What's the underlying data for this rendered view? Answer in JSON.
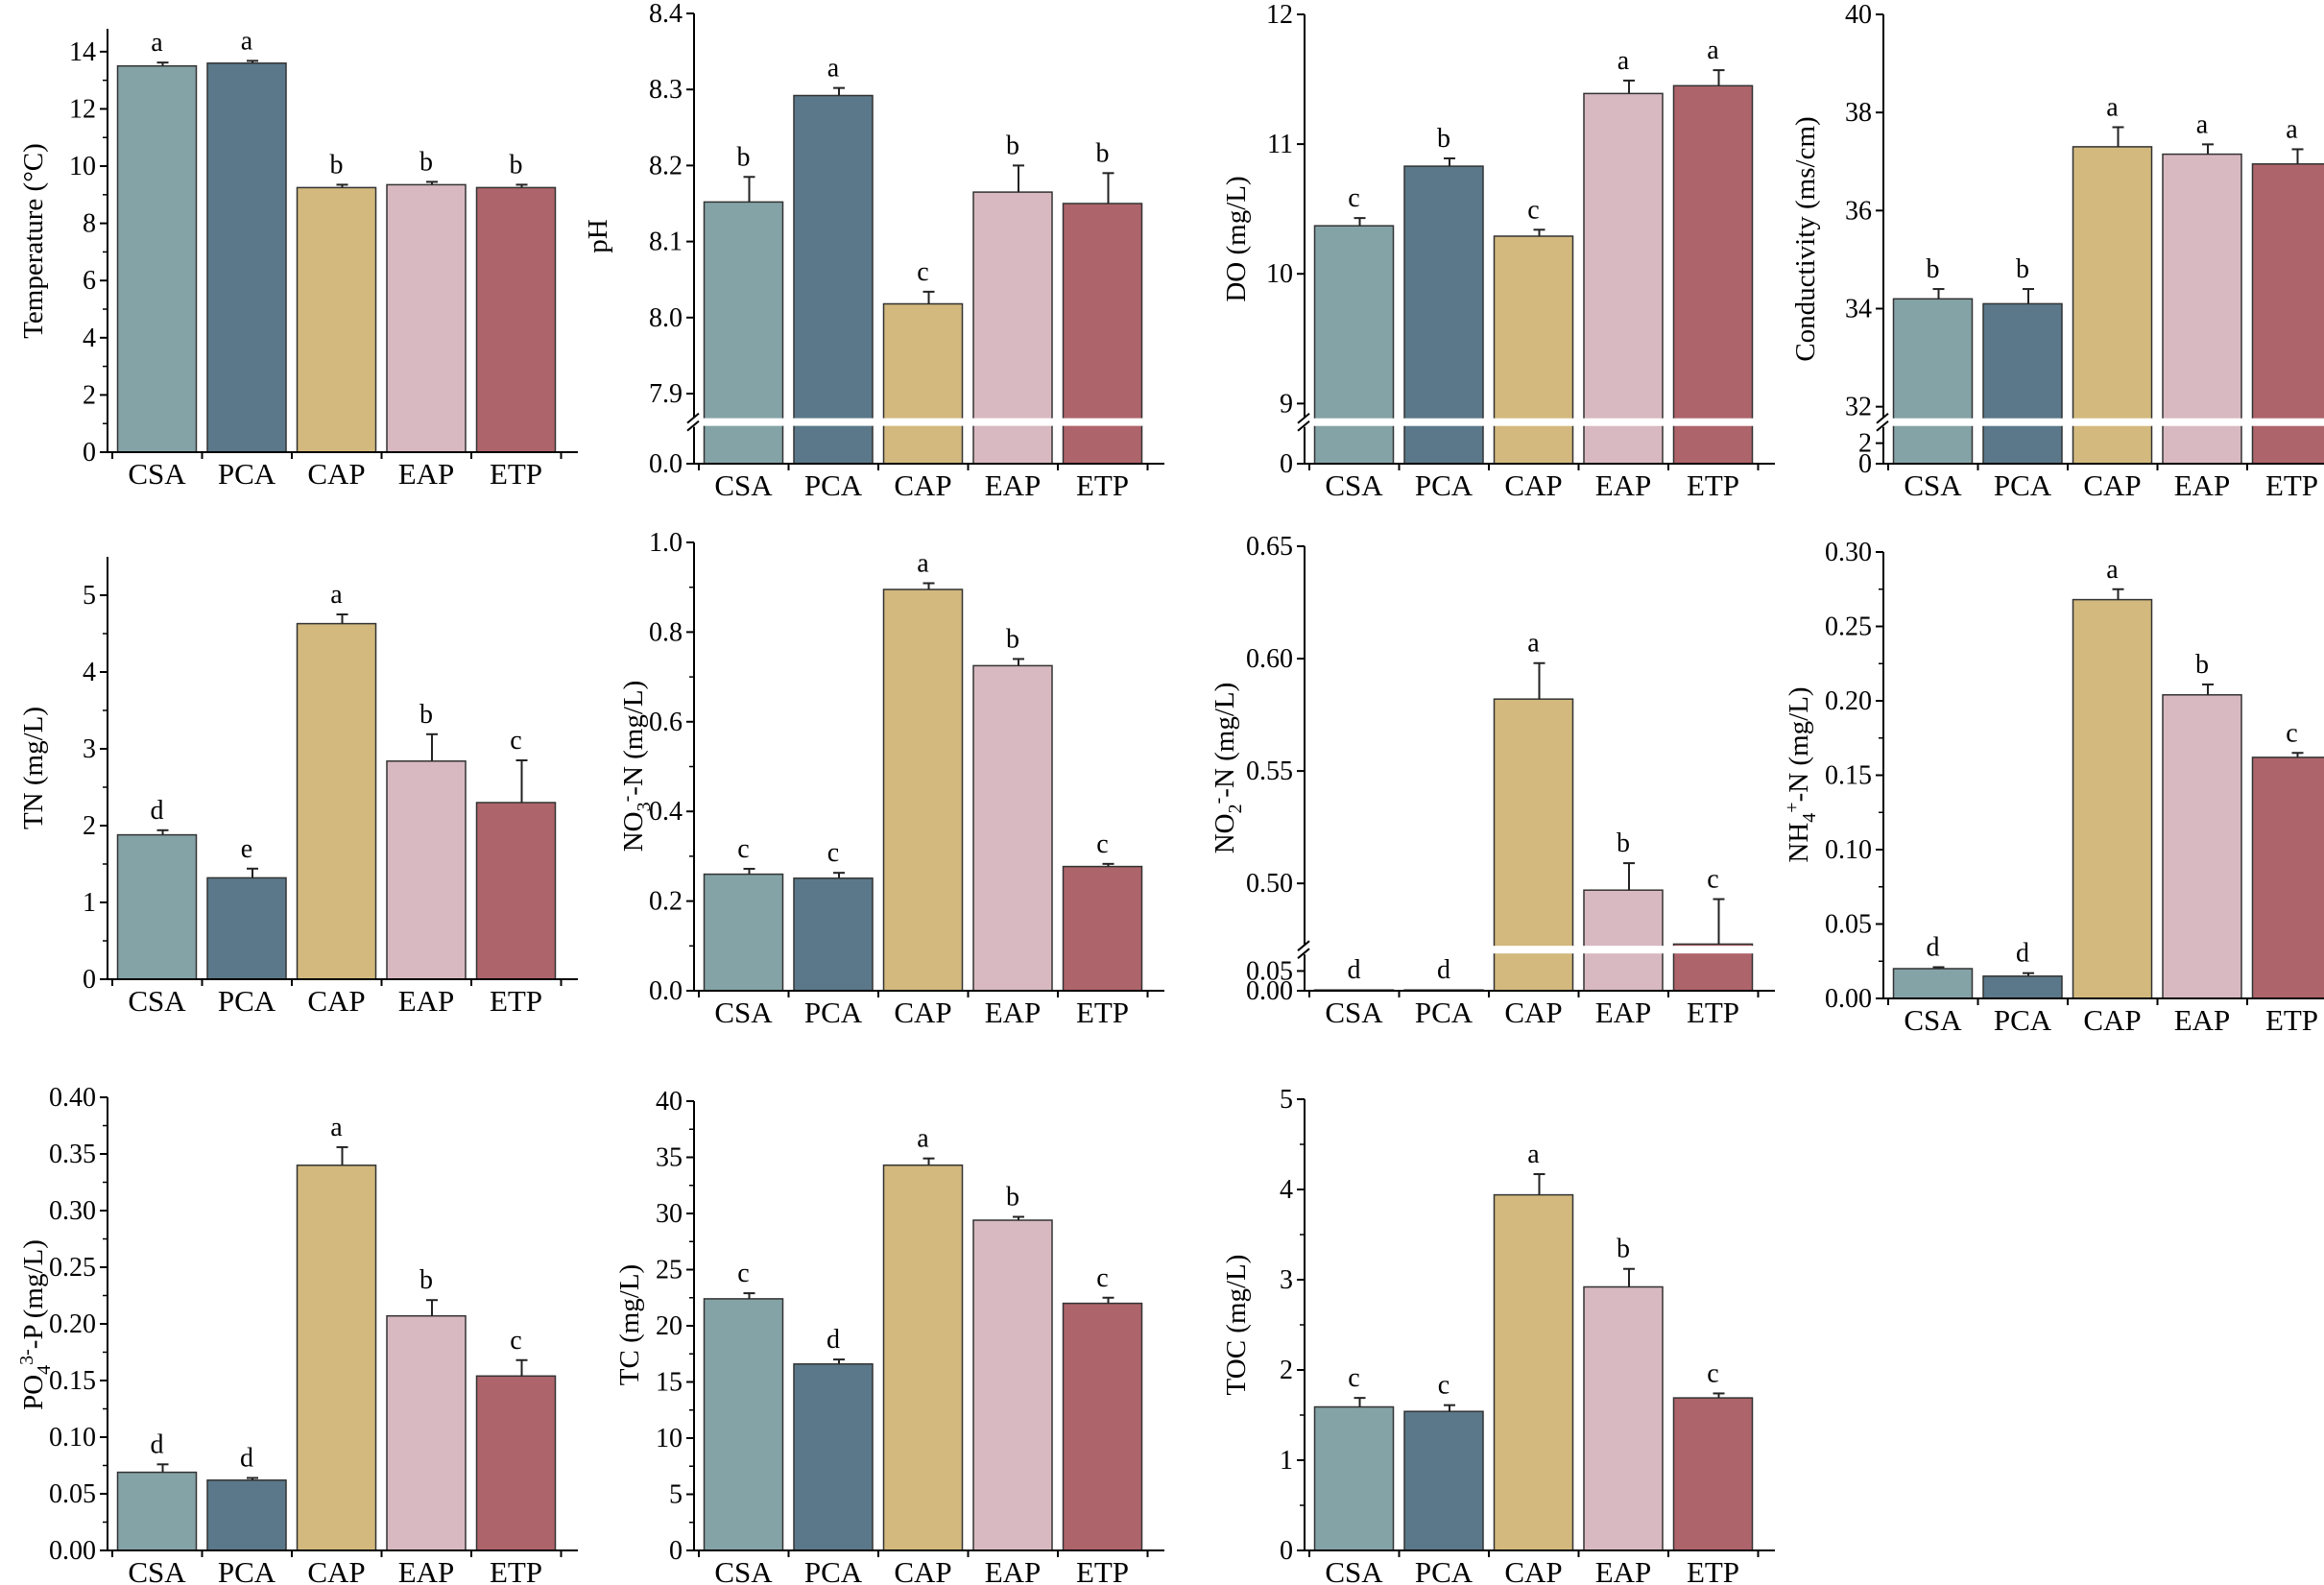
{
  "colors": {
    "CSA": "#84a3a7",
    "PCA": "#5a7889",
    "CAP": "#d3b97e",
    "EAP": "#d9b9c1",
    "ETP": "#ae646b"
  },
  "chart_data": [
    {
      "type": "bar",
      "ylabel": "Temperature (°C)",
      "categories": [
        "CSA",
        "PCA",
        "CAP",
        "EAP",
        "ETP"
      ],
      "values": [
        13.5,
        13.6,
        9.25,
        9.35,
        9.25
      ],
      "errors": [
        0.12,
        0.08,
        0.1,
        0.1,
        0.1
      ],
      "letters": [
        "a",
        "a",
        "b",
        "b",
        "b"
      ],
      "ylim": [
        0,
        14.8
      ],
      "yticks": [
        "0",
        "2",
        "4",
        "6",
        "8",
        "10",
        "12",
        "14"
      ],
      "break": null
    },
    {
      "type": "bar",
      "ylabel": "pH",
      "categories": [
        "CSA",
        "PCA",
        "CAP",
        "EAP",
        "ETP"
      ],
      "values": [
        8.152,
        8.292,
        8.018,
        8.165,
        8.15
      ],
      "errors": [
        0.033,
        0.01,
        0.016,
        0.035,
        0.04
      ],
      "letters": [
        "b",
        "a",
        "c",
        "b",
        "b"
      ],
      "ylim": [
        0,
        8.4
      ],
      "yticks": [
        "0.0",
        "7.9",
        "8.0",
        "8.1",
        "8.2",
        "8.3",
        "8.4"
      ],
      "break": {
        "below": 0.0,
        "above": 7.87
      }
    },
    {
      "type": "bar",
      "ylabel": "DO (mg/L)",
      "categories": [
        "CSA",
        "PCA",
        "CAP",
        "EAP",
        "ETP"
      ],
      "values": [
        10.37,
        10.83,
        10.29,
        11.39,
        11.45
      ],
      "errors": [
        0.06,
        0.06,
        0.05,
        0.1,
        0.12
      ],
      "letters": [
        "c",
        "b",
        "c",
        "a",
        "a"
      ],
      "ylim": [
        0,
        12
      ],
      "yticks": [
        "0",
        "9",
        "10",
        "11",
        "12"
      ],
      "break": {
        "below": 0,
        "above": 8.9
      }
    },
    {
      "type": "bar",
      "ylabel": "Conductivity (ms/cm)",
      "categories": [
        "CSA",
        "PCA",
        "CAP",
        "EAP",
        "ETP"
      ],
      "values": [
        34.2,
        34.1,
        37.3,
        37.15,
        36.95
      ],
      "errors": [
        0.2,
        0.3,
        0.4,
        0.2,
        0.3
      ],
      "letters": [
        "b",
        "b",
        "a",
        "a",
        "a"
      ],
      "ylim": [
        0,
        40
      ],
      "yticks": [
        "0",
        "2",
        "32",
        "34",
        "36",
        "38",
        "40"
      ],
      "break": {
        "below": 3.5,
        "above": 31.8
      }
    },
    {
      "type": "bar",
      "ylabel": "TN (mg/L)",
      "categories": [
        "CSA",
        "PCA",
        "CAP",
        "EAP",
        "ETP"
      ],
      "values": [
        1.88,
        1.32,
        4.63,
        2.84,
        2.3
      ],
      "errors": [
        0.06,
        0.12,
        0.12,
        0.35,
        0.55
      ],
      "letters": [
        "d",
        "e",
        "a",
        "b",
        "c"
      ],
      "ylim": [
        0,
        5.5
      ],
      "yticks": [
        "0",
        "1",
        "2",
        "3",
        "4",
        "5"
      ],
      "break": null
    },
    {
      "type": "bar",
      "ylabel_parts": [
        "NO",
        "3",
        "-",
        "-N (mg/L)"
      ],
      "categories": [
        "CSA",
        "PCA",
        "CAP",
        "EAP",
        "ETP"
      ],
      "values": [
        0.26,
        0.251,
        0.895,
        0.725,
        0.277
      ],
      "errors": [
        0.012,
        0.012,
        0.014,
        0.015,
        0.006
      ],
      "letters": [
        "c",
        "c",
        "a",
        "b",
        "c"
      ],
      "ylim": [
        0,
        1.0
      ],
      "yticks": [
        "0.0",
        "0.2",
        "0.4",
        "0.6",
        "0.8",
        "1.0"
      ],
      "break": null
    },
    {
      "type": "bar",
      "ylabel_parts": [
        "NO",
        "2",
        "-",
        "-N (mg/L)"
      ],
      "categories": [
        "CSA",
        "PCA",
        "CAP",
        "EAP",
        "ETP"
      ],
      "values": [
        0.002,
        0.002,
        0.582,
        0.497,
        0.473
      ],
      "errors": [
        0.0,
        0.0,
        0.016,
        0.012,
        0.02
      ],
      "letters": [
        "d",
        "d",
        "a",
        "b",
        "c"
      ],
      "ylim": [
        0,
        0.65
      ],
      "yticks": [
        "0.00",
        "0.05",
        "0.50",
        "0.55",
        "0.60",
        "0.65"
      ],
      "break": {
        "below": 0.09,
        "above": 0.473
      }
    },
    {
      "type": "bar",
      "ylabel_parts": [
        "NH",
        "4",
        "+",
        "-N (mg/L)"
      ],
      "categories": [
        "CSA",
        "PCA",
        "CAP",
        "EAP",
        "ETP"
      ],
      "values": [
        0.02,
        0.015,
        0.268,
        0.204,
        0.162
      ],
      "errors": [
        0.001,
        0.002,
        0.007,
        0.007,
        0.003
      ],
      "letters": [
        "d",
        "d",
        "a",
        "b",
        "c"
      ],
      "ylim": [
        0,
        0.3
      ],
      "yticks": [
        "0.00",
        "0.05",
        "0.10",
        "0.15",
        "0.20",
        "0.25",
        "0.30"
      ],
      "break": null
    },
    {
      "type": "bar",
      "ylabel_parts": [
        "PO",
        "4",
        "3-",
        "-P (mg/L)"
      ],
      "categories": [
        "CSA",
        "PCA",
        "CAP",
        "EAP",
        "ETP"
      ],
      "values": [
        0.069,
        0.062,
        0.34,
        0.207,
        0.154
      ],
      "errors": [
        0.007,
        0.002,
        0.016,
        0.014,
        0.014
      ],
      "letters": [
        "d",
        "d",
        "a",
        "b",
        "c"
      ],
      "ylim": [
        0,
        0.4
      ],
      "yticks": [
        "0.00",
        "0.05",
        "0.10",
        "0.15",
        "0.20",
        "0.25",
        "0.30",
        "0.35",
        "0.40"
      ],
      "break": null
    },
    {
      "type": "bar",
      "ylabel": "TC (mg/L)",
      "categories": [
        "CSA",
        "PCA",
        "CAP",
        "EAP",
        "ETP"
      ],
      "values": [
        22.4,
        16.6,
        34.3,
        29.4,
        22.0
      ],
      "errors": [
        0.5,
        0.4,
        0.6,
        0.3,
        0.5
      ],
      "letters": [
        "c",
        "d",
        "a",
        "b",
        "c"
      ],
      "ylim": [
        0,
        40
      ],
      "yticks": [
        "0",
        "5",
        "10",
        "15",
        "20",
        "25",
        "30",
        "35",
        "40"
      ],
      "break": null
    },
    {
      "type": "bar",
      "ylabel": "TOC (mg/L)",
      "categories": [
        "CSA",
        "PCA",
        "CAP",
        "EAP",
        "ETP"
      ],
      "values": [
        1.59,
        1.54,
        3.94,
        2.92,
        1.69
      ],
      "errors": [
        0.1,
        0.07,
        0.23,
        0.2,
        0.05
      ],
      "letters": [
        "c",
        "c",
        "a",
        "b",
        "c"
      ],
      "ylim": [
        0,
        5
      ],
      "yticks": [
        "0",
        "1",
        "2",
        "3",
        "4",
        "5"
      ],
      "break": null
    }
  ]
}
